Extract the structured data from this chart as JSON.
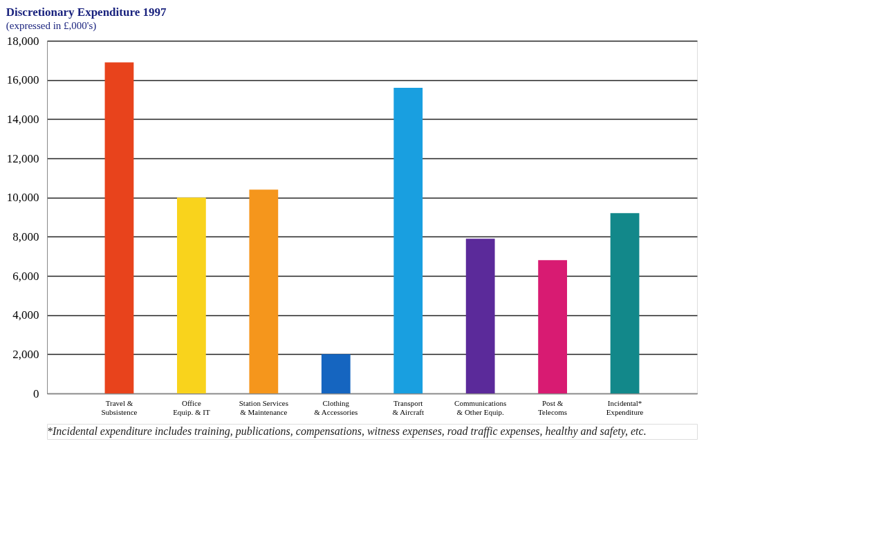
{
  "chart_data": {
    "type": "bar",
    "title": "Discretionary Expenditure 1997",
    "subtitle": "(expressed in £,000's)",
    "categories": [
      "Travel &\nSubsistence",
      "Office\nEquip. & IT",
      "Station Services\n& Maintenance",
      "Clothing\n& Accessories",
      "Transport\n& Aircraft",
      "Communications\n& Other Equip.",
      "Post &\nTelecoms",
      "Incidental*\nExpenditure"
    ],
    "values": [
      16900,
      10000,
      10400,
      2000,
      15600,
      7900,
      6800,
      9200
    ],
    "colors": [
      "#e8431c",
      "#f9d31c",
      "#f5961c",
      "#1565c0",
      "#199fe0",
      "#5b2a9a",
      "#d81b72",
      "#12888a"
    ],
    "ylim": [
      0,
      18000
    ],
    "yticks": [
      0,
      {
        "value": 2000,
        "label": "2,000"
      },
      {
        "value": 4000,
        "label": "4,000"
      },
      {
        "value": 6000,
        "label": "6,000"
      },
      {
        "value": 8000,
        "label": "8,000"
      },
      {
        "value": 10000,
        "label": "10,000"
      },
      {
        "value": 12000,
        "label": "12,000"
      },
      {
        "value": 14000,
        "label": "14,000"
      },
      {
        "value": 16000,
        "label": "16,000"
      },
      {
        "value": 18000,
        "label": "18,000"
      }
    ],
    "grid": "y",
    "annotations": [
      "*Incidental expenditure includes training, publications, compensations, witness expenses, road traffic expenses, healthy and safety, etc."
    ]
  }
}
